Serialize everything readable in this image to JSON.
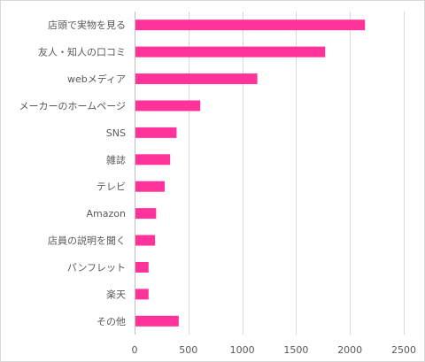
{
  "chart_data": {
    "type": "bar",
    "orientation": "horizontal",
    "title": "",
    "xlabel": "",
    "ylabel": "",
    "categories": [
      "店頭で実物を見る",
      "友人・知人の口コミ",
      "webメディア",
      "メーカーのホームページ",
      "SNS",
      "雑誌",
      "テレビ",
      "Amazon",
      "店員の説明を聞く",
      "パンフレット",
      "楽天",
      "その他"
    ],
    "values": [
      2140,
      1770,
      1140,
      610,
      390,
      330,
      280,
      200,
      190,
      130,
      130,
      410
    ],
    "xlim": [
      0,
      2500
    ],
    "xticks": [
      0,
      500,
      1000,
      1500,
      2000,
      2500
    ],
    "grid": true,
    "bar_color": "#FF3399"
  }
}
